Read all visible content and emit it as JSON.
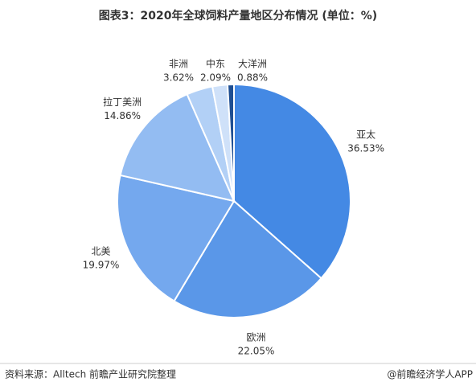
{
  "chart_data": {
    "type": "pie",
    "title": "图表3：2020年全球饲料产量地区分布情况 (单位：%)",
    "categories": [
      "亚太",
      "欧洲",
      "北美",
      "拉丁美洲",
      "非洲",
      "中东",
      "大洋洲"
    ],
    "values": [
      36.53,
      22.05,
      19.97,
      14.86,
      3.62,
      2.09,
      0.88
    ],
    "value_labels": [
      "36.53%",
      "22.05%",
      "19.97%",
      "14.86%",
      "3.62%",
      "2.09%",
      "0.88%"
    ],
    "colors": [
      "#4489e4",
      "#5a97e8",
      "#74a8ee",
      "#93bcf2",
      "#b2d0f6",
      "#cfe1f9",
      "#1f4f93"
    ],
    "source": "资料来源：Alltech 前瞻产业研究院整理",
    "credit": "@前瞻经济学人APP"
  }
}
